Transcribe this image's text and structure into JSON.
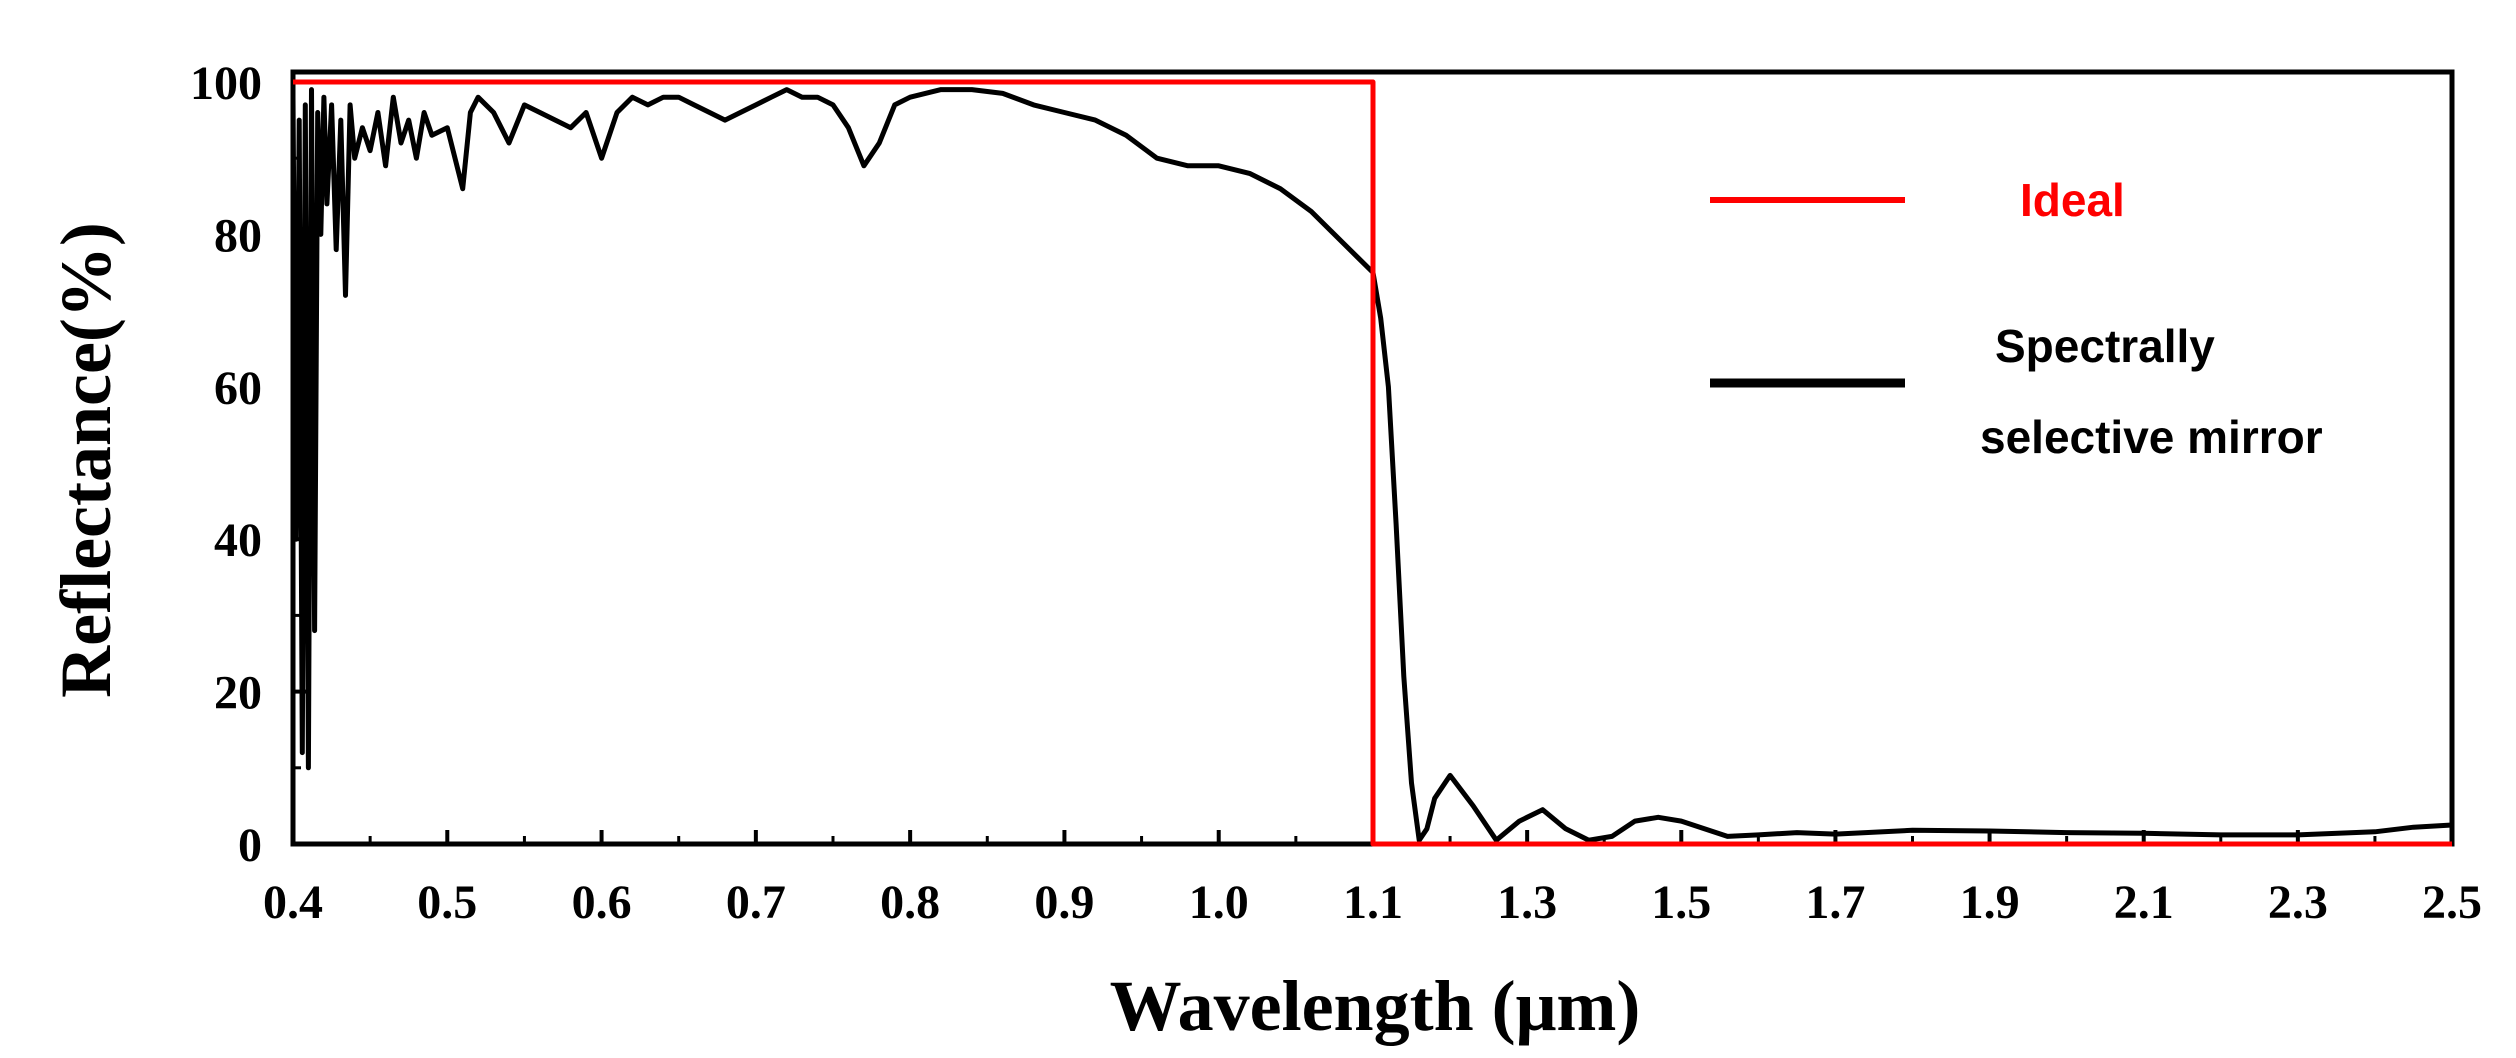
{
  "chart_data": {
    "type": "line",
    "title": "",
    "xlabel": "Wavelength (μm)",
    "ylabel": "Reflectance(%)",
    "xlim": [
      0.4,
      2.5
    ],
    "ylim": [
      0,
      100
    ],
    "grid": false,
    "legend_position": "top-right",
    "x_ticks": [
      0.4,
      0.5,
      0.6,
      0.7,
      0.8,
      0.9,
      1.0,
      1.1,
      1.3,
      1.5,
      1.7,
      1.9,
      2.1,
      2.3,
      2.5
    ],
    "x_tick_labels": [
      "0.4",
      "0.5",
      "0.6",
      "0.7",
      "0.8",
      "0.9",
      "1.0",
      "1.1",
      "1.3",
      "1.5",
      "1.7",
      "1.9",
      "2.1",
      "2.3",
      "2.5"
    ],
    "y_ticks": [
      0,
      20,
      40,
      60,
      80,
      100
    ],
    "y_tick_labels": [
      "0",
      "20",
      "40",
      "60",
      "80",
      "100"
    ],
    "series": [
      {
        "name": "Ideal",
        "color": "#ff0000",
        "x": [
          0.4,
          1.1,
          1.1,
          2.5
        ],
        "y": [
          100,
          100,
          0,
          0
        ]
      },
      {
        "name": "Spectrally selective mirror",
        "legend_lines": [
          "Spectrally",
          "selective mirror"
        ],
        "color": "#000000",
        "x": [
          0.4,
          0.402,
          0.404,
          0.406,
          0.408,
          0.41,
          0.412,
          0.414,
          0.416,
          0.418,
          0.42,
          0.422,
          0.425,
          0.428,
          0.431,
          0.434,
          0.437,
          0.44,
          0.445,
          0.45,
          0.455,
          0.46,
          0.465,
          0.47,
          0.475,
          0.48,
          0.485,
          0.49,
          0.5,
          0.51,
          0.515,
          0.52,
          0.53,
          0.54,
          0.55,
          0.56,
          0.57,
          0.58,
          0.59,
          0.6,
          0.61,
          0.62,
          0.63,
          0.64,
          0.65,
          0.66,
          0.67,
          0.68,
          0.69,
          0.7,
          0.71,
          0.72,
          0.73,
          0.74,
          0.75,
          0.76,
          0.77,
          0.78,
          0.79,
          0.8,
          0.82,
          0.84,
          0.86,
          0.88,
          0.9,
          0.92,
          0.94,
          0.96,
          0.98,
          1.0,
          1.02,
          1.04,
          1.06,
          1.08,
          1.09,
          1.1,
          1.11,
          1.12,
          1.13,
          1.14,
          1.15,
          1.16,
          1.17,
          1.18,
          1.2,
          1.23,
          1.26,
          1.29,
          1.32,
          1.35,
          1.38,
          1.41,
          1.44,
          1.47,
          1.5,
          1.53,
          1.56,
          1.6,
          1.65,
          1.7,
          1.8,
          1.9,
          2.0,
          2.1,
          2.2,
          2.3,
          2.4,
          2.45,
          2.5
        ],
        "y": [
          98,
          40,
          95,
          12,
          97,
          10,
          99,
          28,
          96,
          80,
          98,
          84,
          97,
          78,
          95,
          72,
          97,
          90,
          94,
          91,
          96,
          89,
          98,
          92,
          95,
          90,
          96,
          93,
          94,
          86,
          96,
          98,
          96,
          92,
          97,
          96,
          95,
          94,
          96,
          90,
          96,
          98,
          97,
          98,
          98,
          97,
          96,
          95,
          96,
          97,
          98,
          99,
          98,
          98,
          97,
          94,
          89,
          92,
          97,
          98,
          99,
          99,
          98.5,
          97,
          96,
          95,
          93,
          90,
          89,
          89,
          88,
          86,
          83,
          79,
          77,
          75,
          69,
          60,
          42,
          22,
          8,
          0.5,
          2,
          6,
          9,
          5,
          0.5,
          3,
          4.5,
          2,
          0.5,
          1,
          3,
          3.5,
          3,
          2,
          1,
          1.2,
          1.5,
          1.3,
          1.8,
          1.7,
          1.5,
          1.4,
          1.2,
          1.2,
          1.6,
          2.2,
          2.5
        ]
      }
    ]
  }
}
